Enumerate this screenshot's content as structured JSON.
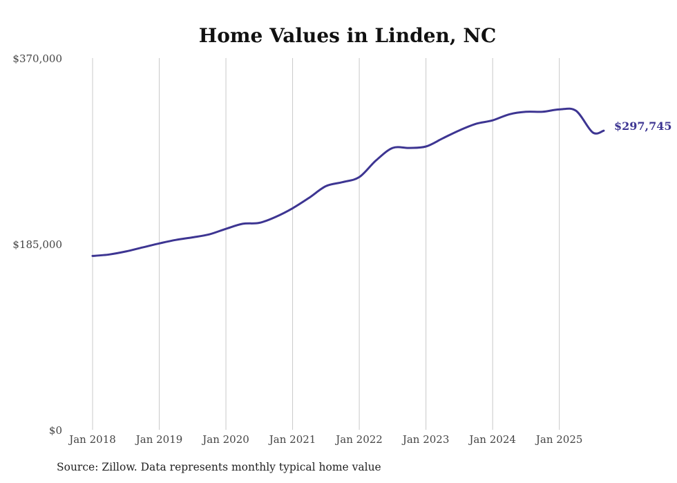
{
  "colors": {
    "line": "#3d3592",
    "grid": "#c8c8c8",
    "text": "#444444",
    "title": "#111111"
  },
  "source_note": "Source: Zillow. Data represents monthly typical home value",
  "chart_data": {
    "type": "line",
    "title": "Home Values in Linden, NC",
    "xlabel": "",
    "ylabel": "",
    "ylim": [
      0,
      370000
    ],
    "yticks": [
      0,
      185000,
      370000
    ],
    "ytick_labels": [
      "$0",
      "$185,000",
      "$370,000"
    ],
    "xlim": [
      "2018-01",
      "2025-09"
    ],
    "xticks": [
      "2018-01",
      "2019-01",
      "2020-01",
      "2021-01",
      "2022-01",
      "2023-01",
      "2024-01",
      "2025-01"
    ],
    "xtick_labels": [
      "Jan 2018",
      "Jan 2019",
      "Jan 2020",
      "Jan 2021",
      "Jan 2022",
      "Jan 2023",
      "Jan 2024",
      "Jan 2025"
    ],
    "grid": {
      "vertical": true,
      "horizontal": false
    },
    "end_label": "$297,745",
    "series": [
      {
        "x": [
          "2018-01",
          "2018-04",
          "2018-07",
          "2018-10",
          "2019-01",
          "2019-04",
          "2019-07",
          "2019-10",
          "2020-01",
          "2020-04",
          "2020-07",
          "2020-10",
          "2021-01",
          "2021-04",
          "2021-07",
          "2021-10",
          "2022-01",
          "2022-04",
          "2022-07",
          "2022-10",
          "2023-01",
          "2023-04",
          "2023-07",
          "2023-10",
          "2024-01",
          "2024-04",
          "2024-07",
          "2024-10",
          "2025-01",
          "2025-04",
          "2025-07",
          "2025-09"
        ],
        "values": [
          173000,
          174500,
          177500,
          181500,
          185500,
          189000,
          191500,
          194500,
          200000,
          205000,
          206000,
          212000,
          220500,
          231000,
          242500,
          246500,
          251500,
          268000,
          280500,
          280500,
          282000,
          290000,
          298000,
          304500,
          308000,
          314000,
          316500,
          316500,
          318800,
          317500,
          296000,
          297745
        ]
      }
    ]
  }
}
